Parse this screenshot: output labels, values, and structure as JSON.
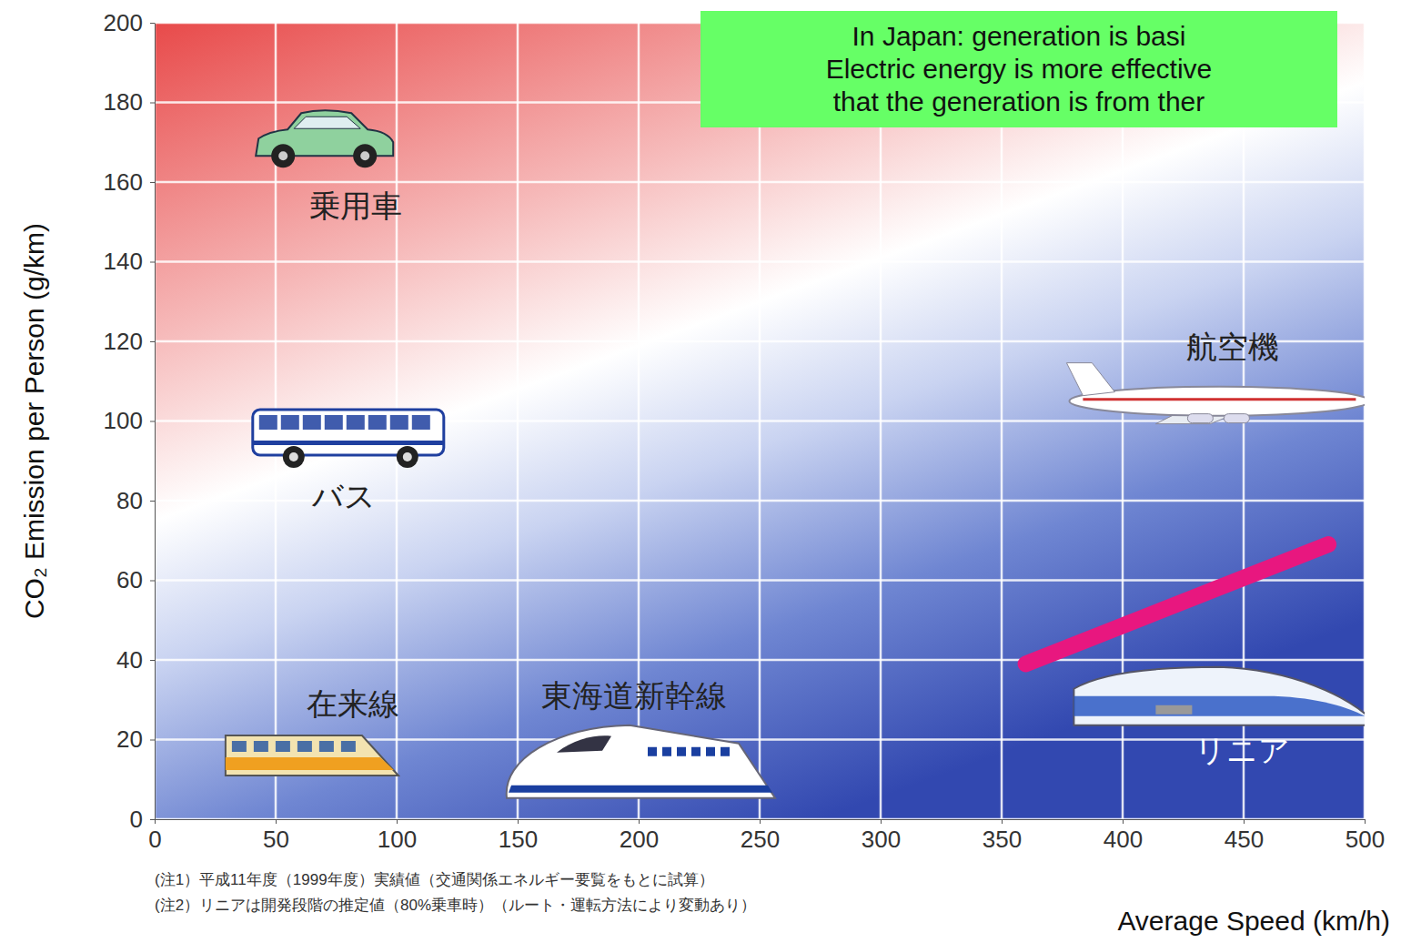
{
  "chart_data": {
    "type": "scatter",
    "x_label": "Average Speed (km/h)",
    "y_label": "CO₂ Emission per Person (g/km)",
    "xlim": [
      0,
      500
    ],
    "xticks": [
      0,
      50,
      100,
      150,
      200,
      250,
      300,
      350,
      400,
      450,
      500
    ],
    "ylim": [
      0,
      200
    ],
    "yticks": [
      0,
      20,
      40,
      60,
      80,
      100,
      120,
      140,
      160,
      180,
      200
    ],
    "grid": true,
    "series": [
      {
        "name": "乗用車",
        "marker": "car",
        "color": "#8fd19e",
        "x": [
          70
        ],
        "values": [
          170
        ]
      },
      {
        "name": "バス",
        "marker": "bus",
        "color": "#1f3f9f",
        "x": [
          80
        ],
        "values": [
          96
        ]
      },
      {
        "name": "在来線",
        "marker": "train",
        "color": "#f0a020",
        "x": [
          65
        ],
        "values": [
          16
        ]
      },
      {
        "name": "東海道新幹線",
        "marker": "shinkansen",
        "color": "#1a3fa0",
        "x": [
          200
        ],
        "values": [
          14
        ]
      },
      {
        "name": "航空機",
        "marker": "plane",
        "color": "#d03030",
        "x": [
          440
        ],
        "values": [
          105
        ]
      },
      {
        "name": "リニア",
        "marker": "maglev",
        "color": "#2050c0",
        "x": [
          440
        ],
        "values": [
          30
        ]
      },
      {
        "type": "line",
        "color": "#e8177f",
        "x": [
          360,
          485
        ],
        "values": [
          39,
          69
        ]
      }
    ],
    "annotations": [
      "In Japan: generation is basi",
      "Electric energy is more effective",
      "that the generation is from ther"
    ],
    "notes": [
      "(注1）平成11年度（1999年度）実績値（交通関係エネルギー要覧をもとに試算）",
      "(注2）リニアは開発段階の推定値（80%乗車時）（ルート・運転方法により変動あり）"
    ]
  }
}
